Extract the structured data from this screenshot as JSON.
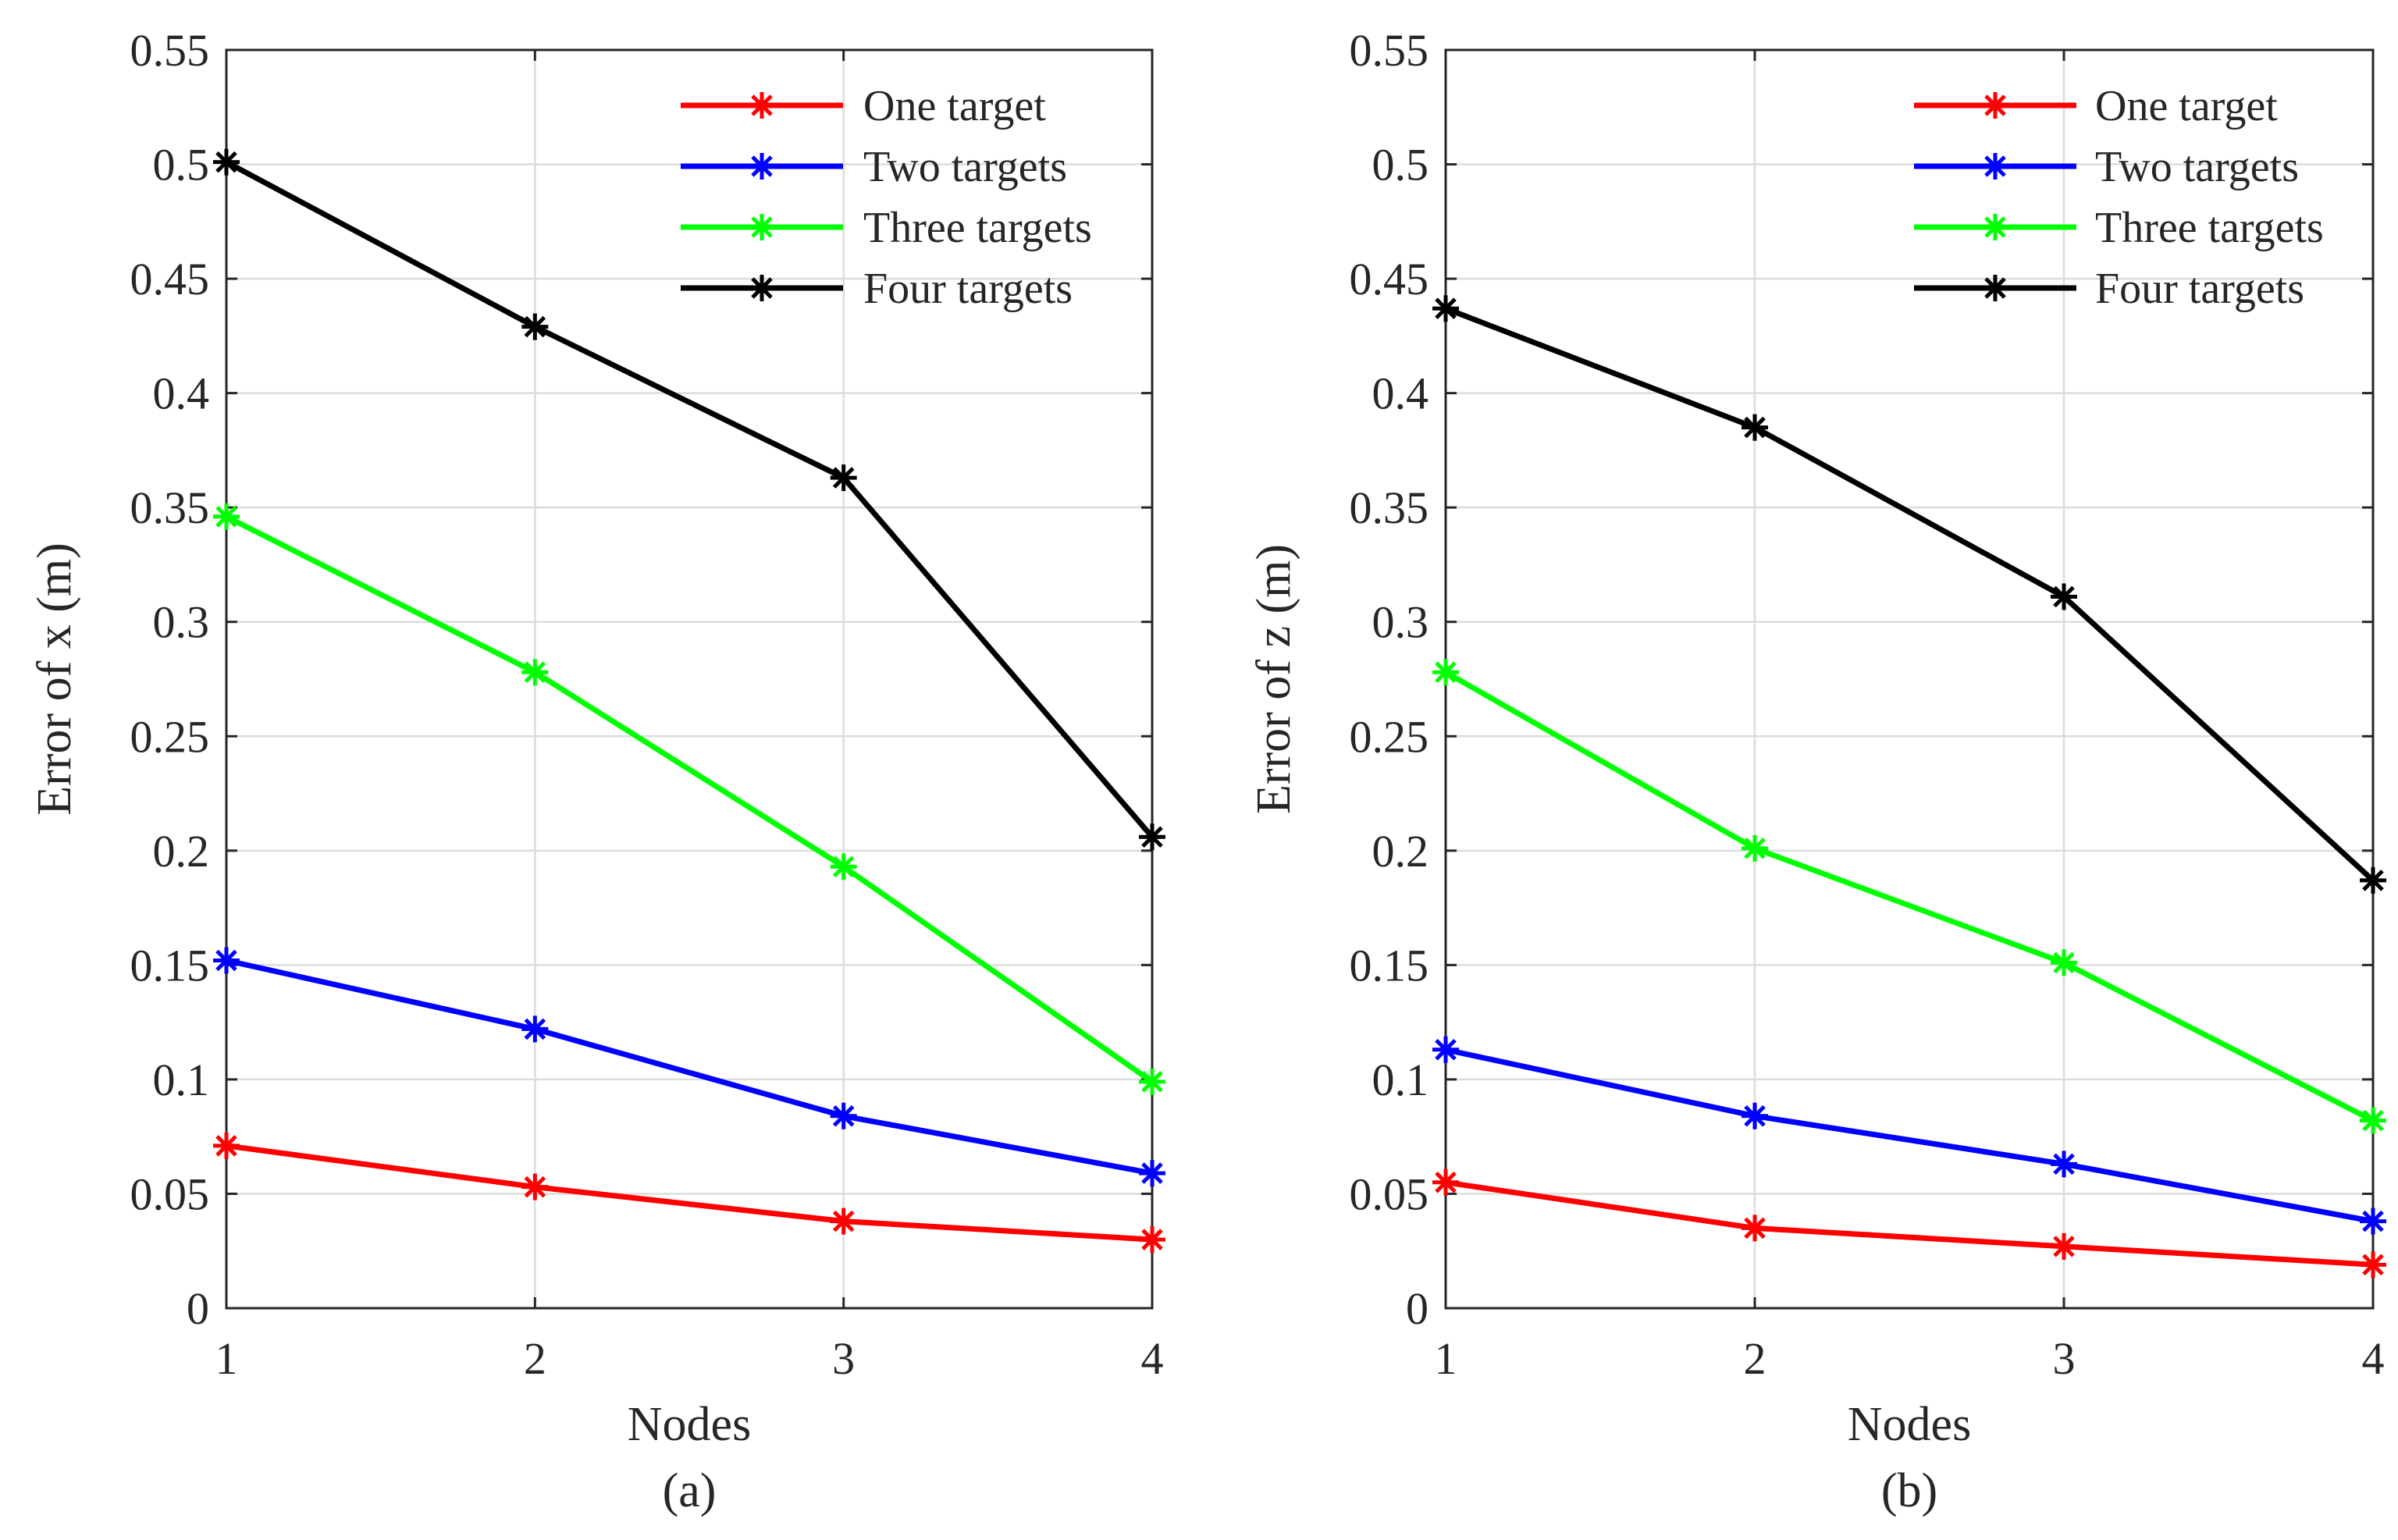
{
  "chart_data": [
    {
      "type": "line",
      "caption": "(a)",
      "xlabel": "Nodes",
      "ylabel": "Error of x (m)",
      "x": [
        1,
        2,
        3,
        4
      ],
      "xticks": [
        "1",
        "2",
        "3",
        "4"
      ],
      "yticks": [
        "0",
        "0.05",
        "0.1",
        "0.15",
        "0.2",
        "0.25",
        "0.3",
        "0.35",
        "0.4",
        "0.45",
        "0.5",
        "0.55"
      ],
      "ylim": [
        0,
        0.55
      ],
      "xlim": [
        1,
        4
      ],
      "grid": true,
      "legend_position": "top-right",
      "series": [
        {
          "name": "One target",
          "color": "#ff0000",
          "values": [
            0.071,
            0.053,
            0.038,
            0.03
          ]
        },
        {
          "name": "Two targets",
          "color": "#0000ff",
          "values": [
            0.152,
            0.122,
            0.084,
            0.059
          ]
        },
        {
          "name": "Three  targets",
          "color": "#00ff00",
          "values": [
            0.346,
            0.278,
            0.193,
            0.099
          ]
        },
        {
          "name": "Four targets",
          "color": "#000000",
          "values": [
            0.501,
            0.429,
            0.363,
            0.206
          ]
        }
      ]
    },
    {
      "type": "line",
      "caption": "(b)",
      "xlabel": "Nodes",
      "ylabel": "Error of z (m)",
      "x": [
        1,
        2,
        3,
        4
      ],
      "xticks": [
        "1",
        "2",
        "3",
        "4"
      ],
      "yticks": [
        "0",
        "0.05",
        "0.1",
        "0.15",
        "0.2",
        "0.25",
        "0.3",
        "0.35",
        "0.4",
        "0.45",
        "0.5",
        "0.55"
      ],
      "ylim": [
        0,
        0.55
      ],
      "xlim": [
        1,
        4
      ],
      "grid": true,
      "legend_position": "top-right",
      "series": [
        {
          "name": "One target",
          "color": "#ff0000",
          "values": [
            0.055,
            0.035,
            0.027,
            0.019
          ]
        },
        {
          "name": "Two targets",
          "color": "#0000ff",
          "values": [
            0.113,
            0.084,
            0.063,
            0.038
          ]
        },
        {
          "name": "Three targets",
          "color": "#00ff00",
          "values": [
            0.278,
            0.201,
            0.151,
            0.082
          ]
        },
        {
          "name": "Four targets",
          "color": "#000000",
          "values": [
            0.437,
            0.385,
            0.311,
            0.187
          ]
        }
      ]
    }
  ]
}
